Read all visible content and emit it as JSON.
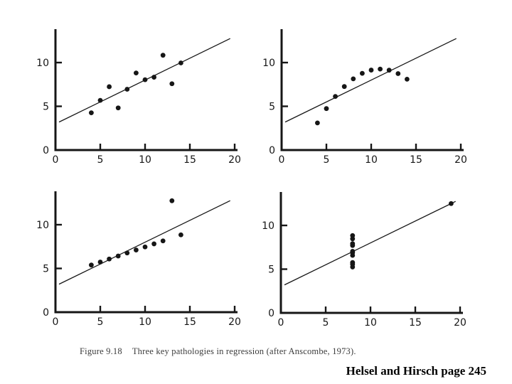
{
  "colors": {
    "paper": "#ffffff",
    "ink": "#161616",
    "caption_ink": "#3c3c3c"
  },
  "caption": {
    "figure_label": "Figure 9.18",
    "figure_title": "Three key pathologies in regression (after Anscombe, 1973)."
  },
  "attribution": "Helsel and Hirsch page 245",
  "chart_data": [
    {
      "id": "anscombe-1",
      "position": "top-left",
      "type": "scatter",
      "title": "",
      "xlabel": "",
      "ylabel": "",
      "x": [
        4,
        5,
        6,
        7,
        8,
        9,
        10,
        11,
        12,
        13,
        14
      ],
      "y": [
        4.26,
        5.68,
        7.24,
        4.82,
        6.95,
        8.81,
        8.04,
        8.33,
        10.84,
        7.58,
        9.96
      ],
      "regression_line": {
        "slope": 0.5,
        "intercept": 3.0,
        "x_start": 0.4,
        "x_end": 19.5
      },
      "xlim": [
        0,
        20.3
      ],
      "ylim": [
        0,
        13.7
      ],
      "x_ticks": [
        0,
        5,
        10,
        15,
        20
      ],
      "y_ticks": [
        0,
        5,
        10
      ],
      "grid": false,
      "legend": false
    },
    {
      "id": "anscombe-2",
      "position": "top-right",
      "type": "scatter",
      "title": "",
      "xlabel": "",
      "ylabel": "",
      "x": [
        4,
        5,
        6,
        7,
        8,
        9,
        10,
        11,
        12,
        13,
        14
      ],
      "y": [
        3.1,
        4.74,
        6.13,
        7.26,
        8.14,
        8.77,
        9.14,
        9.26,
        9.13,
        8.74,
        8.1
      ],
      "regression_line": {
        "slope": 0.5,
        "intercept": 3.0,
        "x_start": 0.4,
        "x_end": 19.5
      },
      "xlim": [
        0,
        20.3
      ],
      "ylim": [
        0,
        13.7
      ],
      "x_ticks": [
        0,
        5,
        10,
        15,
        20
      ],
      "y_ticks": [
        0,
        5,
        10
      ],
      "grid": false,
      "legend": false
    },
    {
      "id": "anscombe-3",
      "position": "bottom-left",
      "type": "scatter",
      "title": "",
      "xlabel": "",
      "ylabel": "",
      "x": [
        4,
        5,
        6,
        7,
        8,
        9,
        10,
        11,
        12,
        13,
        14
      ],
      "y": [
        5.39,
        5.73,
        6.08,
        6.42,
        6.77,
        7.11,
        7.46,
        7.81,
        8.15,
        12.74,
        8.84
      ],
      "regression_line": {
        "slope": 0.5,
        "intercept": 3.0,
        "x_start": 0.4,
        "x_end": 19.5
      },
      "xlim": [
        0,
        20.3
      ],
      "ylim": [
        0,
        13.7
      ],
      "x_ticks": [
        0,
        5,
        10,
        15,
        20
      ],
      "y_ticks": [
        0,
        5,
        10
      ],
      "grid": false,
      "legend": false
    },
    {
      "id": "anscombe-4",
      "position": "bottom-right",
      "type": "scatter",
      "title": "",
      "xlabel": "",
      "ylabel": "",
      "x": [
        8,
        8,
        8,
        8,
        8,
        8,
        8,
        8,
        8,
        8,
        19
      ],
      "y": [
        5.25,
        5.56,
        5.76,
        6.58,
        6.89,
        7.04,
        7.71,
        7.91,
        8.47,
        8.84,
        12.5
      ],
      "regression_line": {
        "slope": 0.5,
        "intercept": 3.0,
        "x_start": 0.4,
        "x_end": 19.5
      },
      "xlim": [
        0,
        20.3
      ],
      "ylim": [
        0,
        13.7
      ],
      "x_ticks": [
        0,
        5,
        10,
        15,
        20
      ],
      "y_ticks": [
        0,
        5,
        10
      ],
      "grid": false,
      "legend": false
    }
  ]
}
